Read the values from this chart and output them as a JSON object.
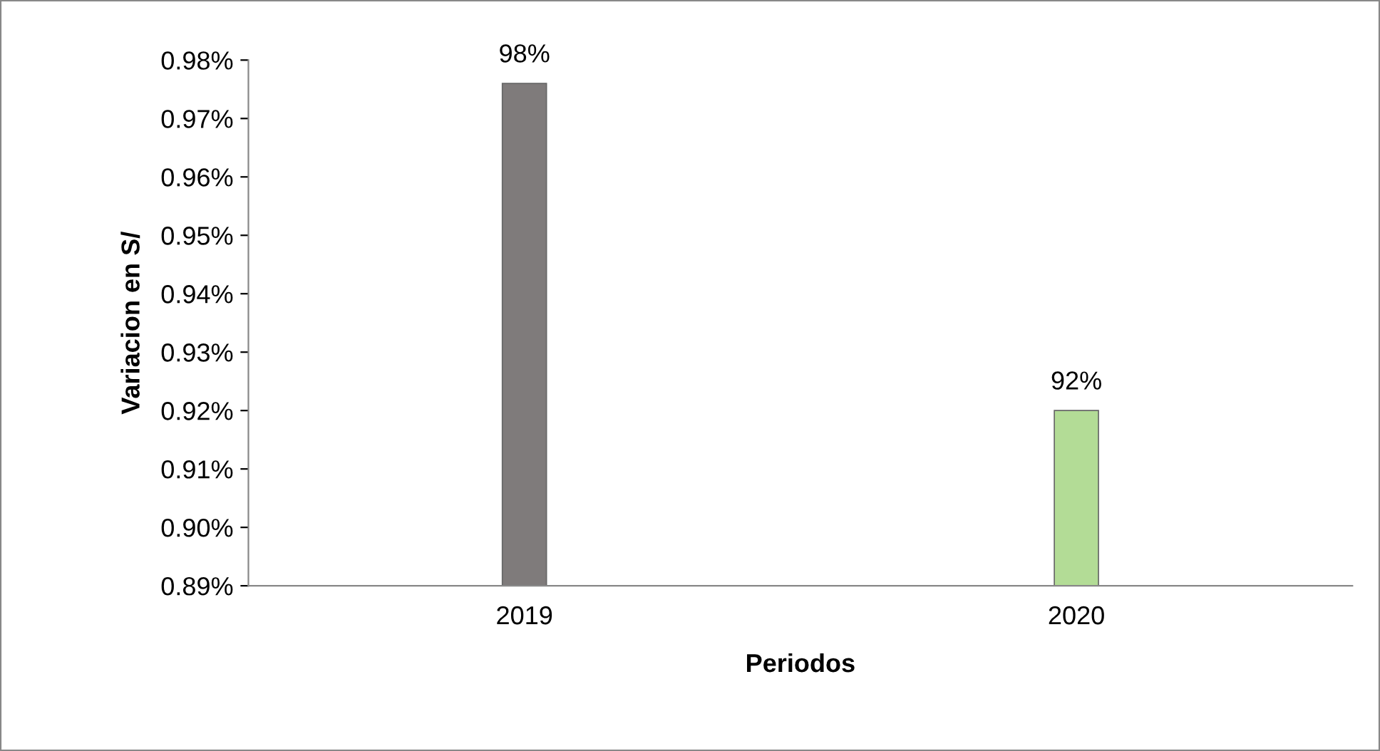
{
  "chart_data": {
    "type": "bar",
    "xlabel": "Periodos",
    "ylabel": "Variacion en S/",
    "categories": [
      "2019",
      "2020"
    ],
    "values": [
      0.976,
      0.92
    ],
    "colors": [
      "#7f7b7b",
      "#b3dc96"
    ],
    "value_labels": [
      "98%",
      "92%"
    ],
    "ylim": [
      0.89,
      0.98
    ],
    "yticks": [
      {
        "value": 0.89,
        "label": "0.89%"
      },
      {
        "value": 0.9,
        "label": "0.90%"
      },
      {
        "value": 0.91,
        "label": "0.91%"
      },
      {
        "value": 0.92,
        "label": "0.92%"
      },
      {
        "value": 0.93,
        "label": "0.93%"
      },
      {
        "value": 0.94,
        "label": "0.94%"
      },
      {
        "value": 0.95,
        "label": "0.95%"
      },
      {
        "value": 0.96,
        "label": "0.96%"
      },
      {
        "value": 0.97,
        "label": "0.97%"
      },
      {
        "value": 0.98,
        "label": "0.98%"
      }
    ],
    "grid": false,
    "legend": false
  }
}
